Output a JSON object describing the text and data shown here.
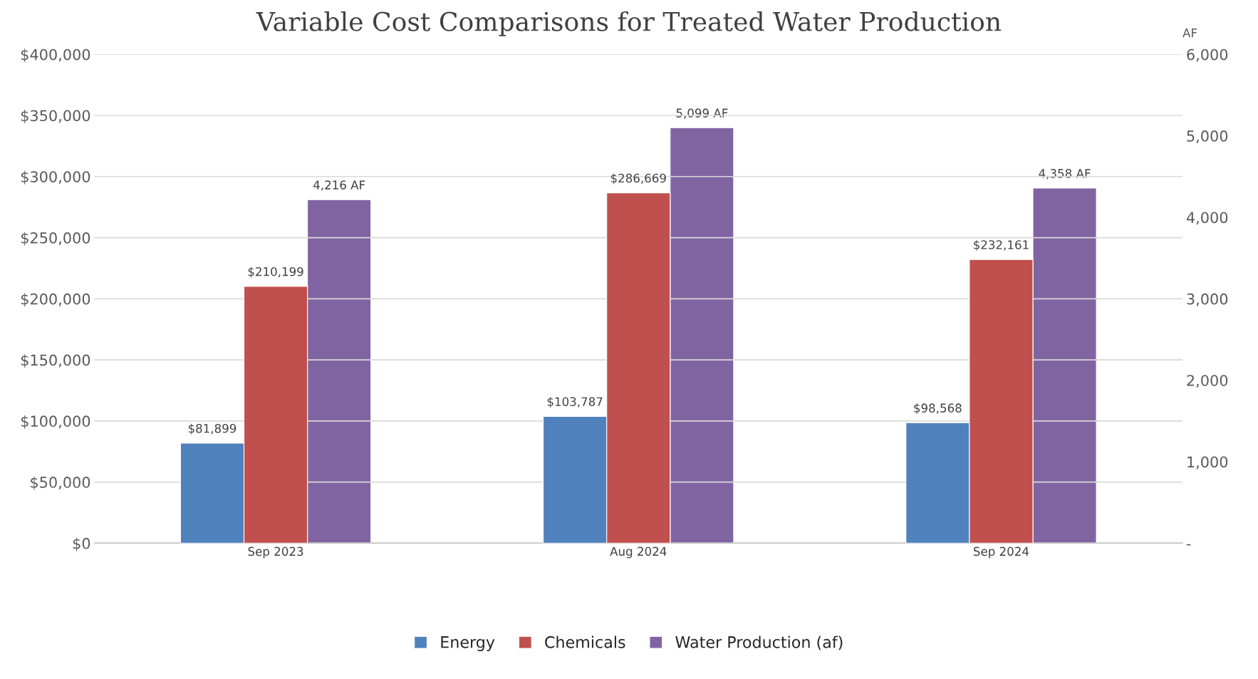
{
  "chart_data": {
    "type": "bar",
    "title": "Variable Cost Comparisons for Treated Water Production",
    "y2label": "AF",
    "categories": [
      "Sep 2023",
      "Aug 2024",
      "Sep 2024"
    ],
    "series": [
      {
        "name": "Energy",
        "color": "#4f81bd",
        "values": [
          81899,
          103787,
          98568
        ],
        "value_labels": [
          "$81,899",
          "$103,787",
          "$98,568"
        ]
      },
      {
        "name": "Chemicals",
        "color": "#c0504d",
        "values": [
          210199,
          286669,
          232161
        ],
        "value_labels": [
          "$210,199",
          "$286,669",
          "$232,161"
        ]
      },
      {
        "name": "Water Production (af)",
        "color": "#8064a2",
        "axis": "y2",
        "values": [
          4216,
          5099,
          4358
        ],
        "value_labels": [
          "4,216 AF",
          "5,099 AF",
          "4,358 AF"
        ]
      }
    ],
    "ylim": [
      0,
      400000
    ],
    "yticks": [
      {
        "value": 0,
        "label": "$0"
      },
      {
        "value": 50000,
        "label": "$50,000"
      },
      {
        "value": 100000,
        "label": "$100,000"
      },
      {
        "value": 150000,
        "label": "$150,000"
      },
      {
        "value": 200000,
        "label": "$200,000"
      },
      {
        "value": 250000,
        "label": "$250,000"
      },
      {
        "value": 300000,
        "label": "$300,000"
      },
      {
        "value": 350000,
        "label": "$350,000"
      },
      {
        "value": 400000,
        "label": "$400,000"
      }
    ],
    "y2lim": [
      0,
      6000
    ],
    "y2ticks": [
      {
        "value": 0,
        "label": "-"
      },
      {
        "value": 1000,
        "label": "1,000"
      },
      {
        "value": 2000,
        "label": "2,000"
      },
      {
        "value": 3000,
        "label": "3,000"
      },
      {
        "value": 4000,
        "label": "4,000"
      },
      {
        "value": 5000,
        "label": "5,000"
      },
      {
        "value": 6000,
        "label": "6,000"
      }
    ],
    "grid": "y",
    "legend": "bottom"
  }
}
